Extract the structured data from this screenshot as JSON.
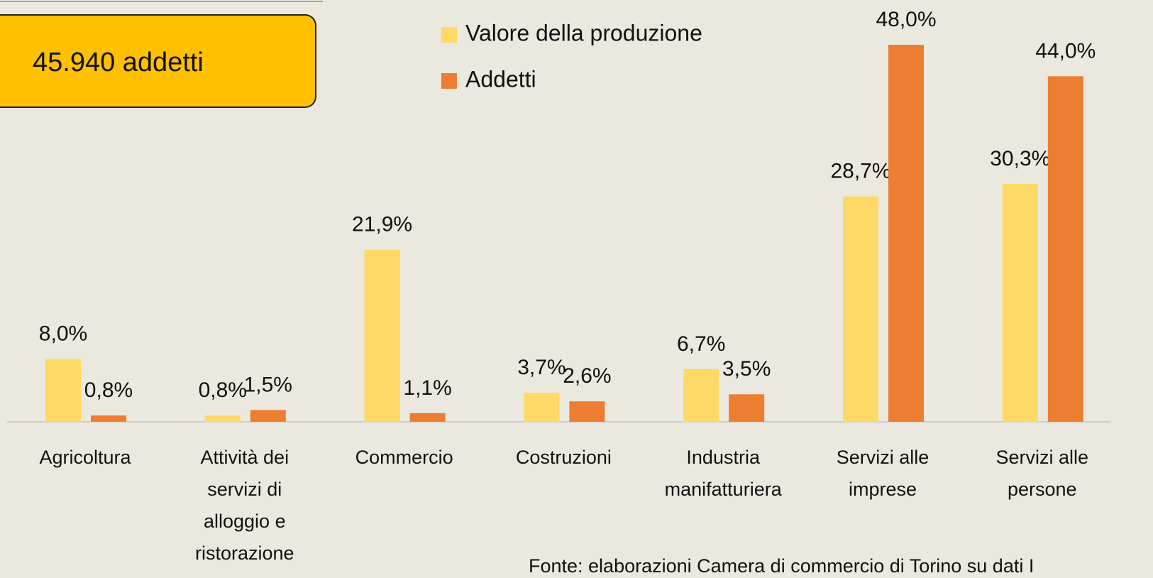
{
  "chart_data": {
    "type": "bar",
    "categories": [
      "Agricoltura",
      "Attività dei servizi di alloggio e ristorazione",
      "Commercio",
      "Costruzioni",
      "Industria manifatturiera",
      "Servizi alle imprese",
      "Servizi alle persone"
    ],
    "series": [
      {
        "name": "Valore della produzione",
        "color": "#ffd966",
        "values": [
          8.0,
          0.8,
          21.9,
          3.7,
          6.7,
          28.7,
          30.3
        ],
        "value_labels": [
          "8,0%",
          "0,8%",
          "21,9%",
          "3,7%",
          "6,7%",
          "28,7%",
          "30,3%"
        ]
      },
      {
        "name": "Addetti",
        "color": "#ed7d31",
        "values": [
          0.8,
          1.5,
          1.1,
          2.6,
          3.5,
          48.0,
          44.0
        ],
        "value_labels": [
          "0,8%",
          "1,5%",
          "1,1%",
          "2,6%",
          "3,5%",
          "48,0%",
          "44,0%"
        ]
      }
    ],
    "ylim": [
      0,
      50
    ],
    "annotation": "45.940 addetti",
    "source": "Fonte: elaborazioni Camera di commercio di Torino su dati I"
  }
}
